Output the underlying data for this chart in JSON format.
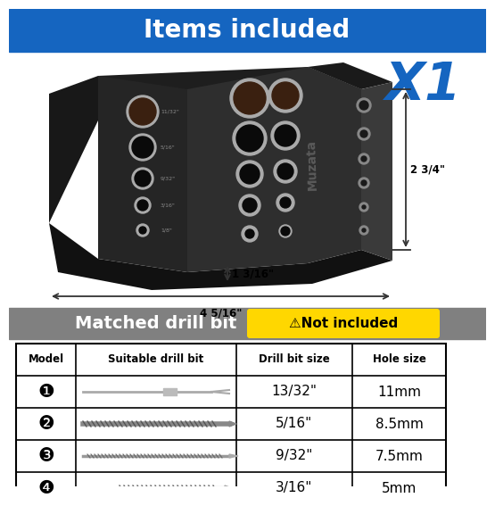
{
  "title": "Items included",
  "title_bg": "#1565C0",
  "title_color": "#FFFFFF",
  "title_fontsize": 20,
  "x1_text": "X1",
  "x1_color": "#1565C0",
  "dim1": "1 3/16\"",
  "dim2": "4 5/16\"",
  "dim3": "2 3/4\"",
  "section2_text": "Matched drill bit",
  "section2_bg": "#808080",
  "section2_color": "#FFFFFF",
  "not_included_text": "⚠Not included",
  "not_included_bg": "#FFD700",
  "not_included_color": "#000000",
  "table_headers": [
    "Model",
    "Suitable drill bit",
    "Drill bit size",
    "Hole size"
  ],
  "model_icons": [
    "❶",
    "❷",
    "❸",
    "❹"
  ],
  "drill_sizes": [
    "13/32\"",
    "5/16\"",
    "9/32\"",
    "3/16\""
  ],
  "hole_sizes": [
    "11mm",
    "8.5mm",
    "7.5mm",
    "5mm"
  ],
  "bg_color": "#FFFFFF",
  "jig_body_color": "#2a2a2a",
  "jig_left_color": "#1a1a1a",
  "jig_right_color": "#333333",
  "jig_bottom_color": "#151515",
  "hole_ring_color": "#cccccc",
  "hole_dark_color": "#111111"
}
